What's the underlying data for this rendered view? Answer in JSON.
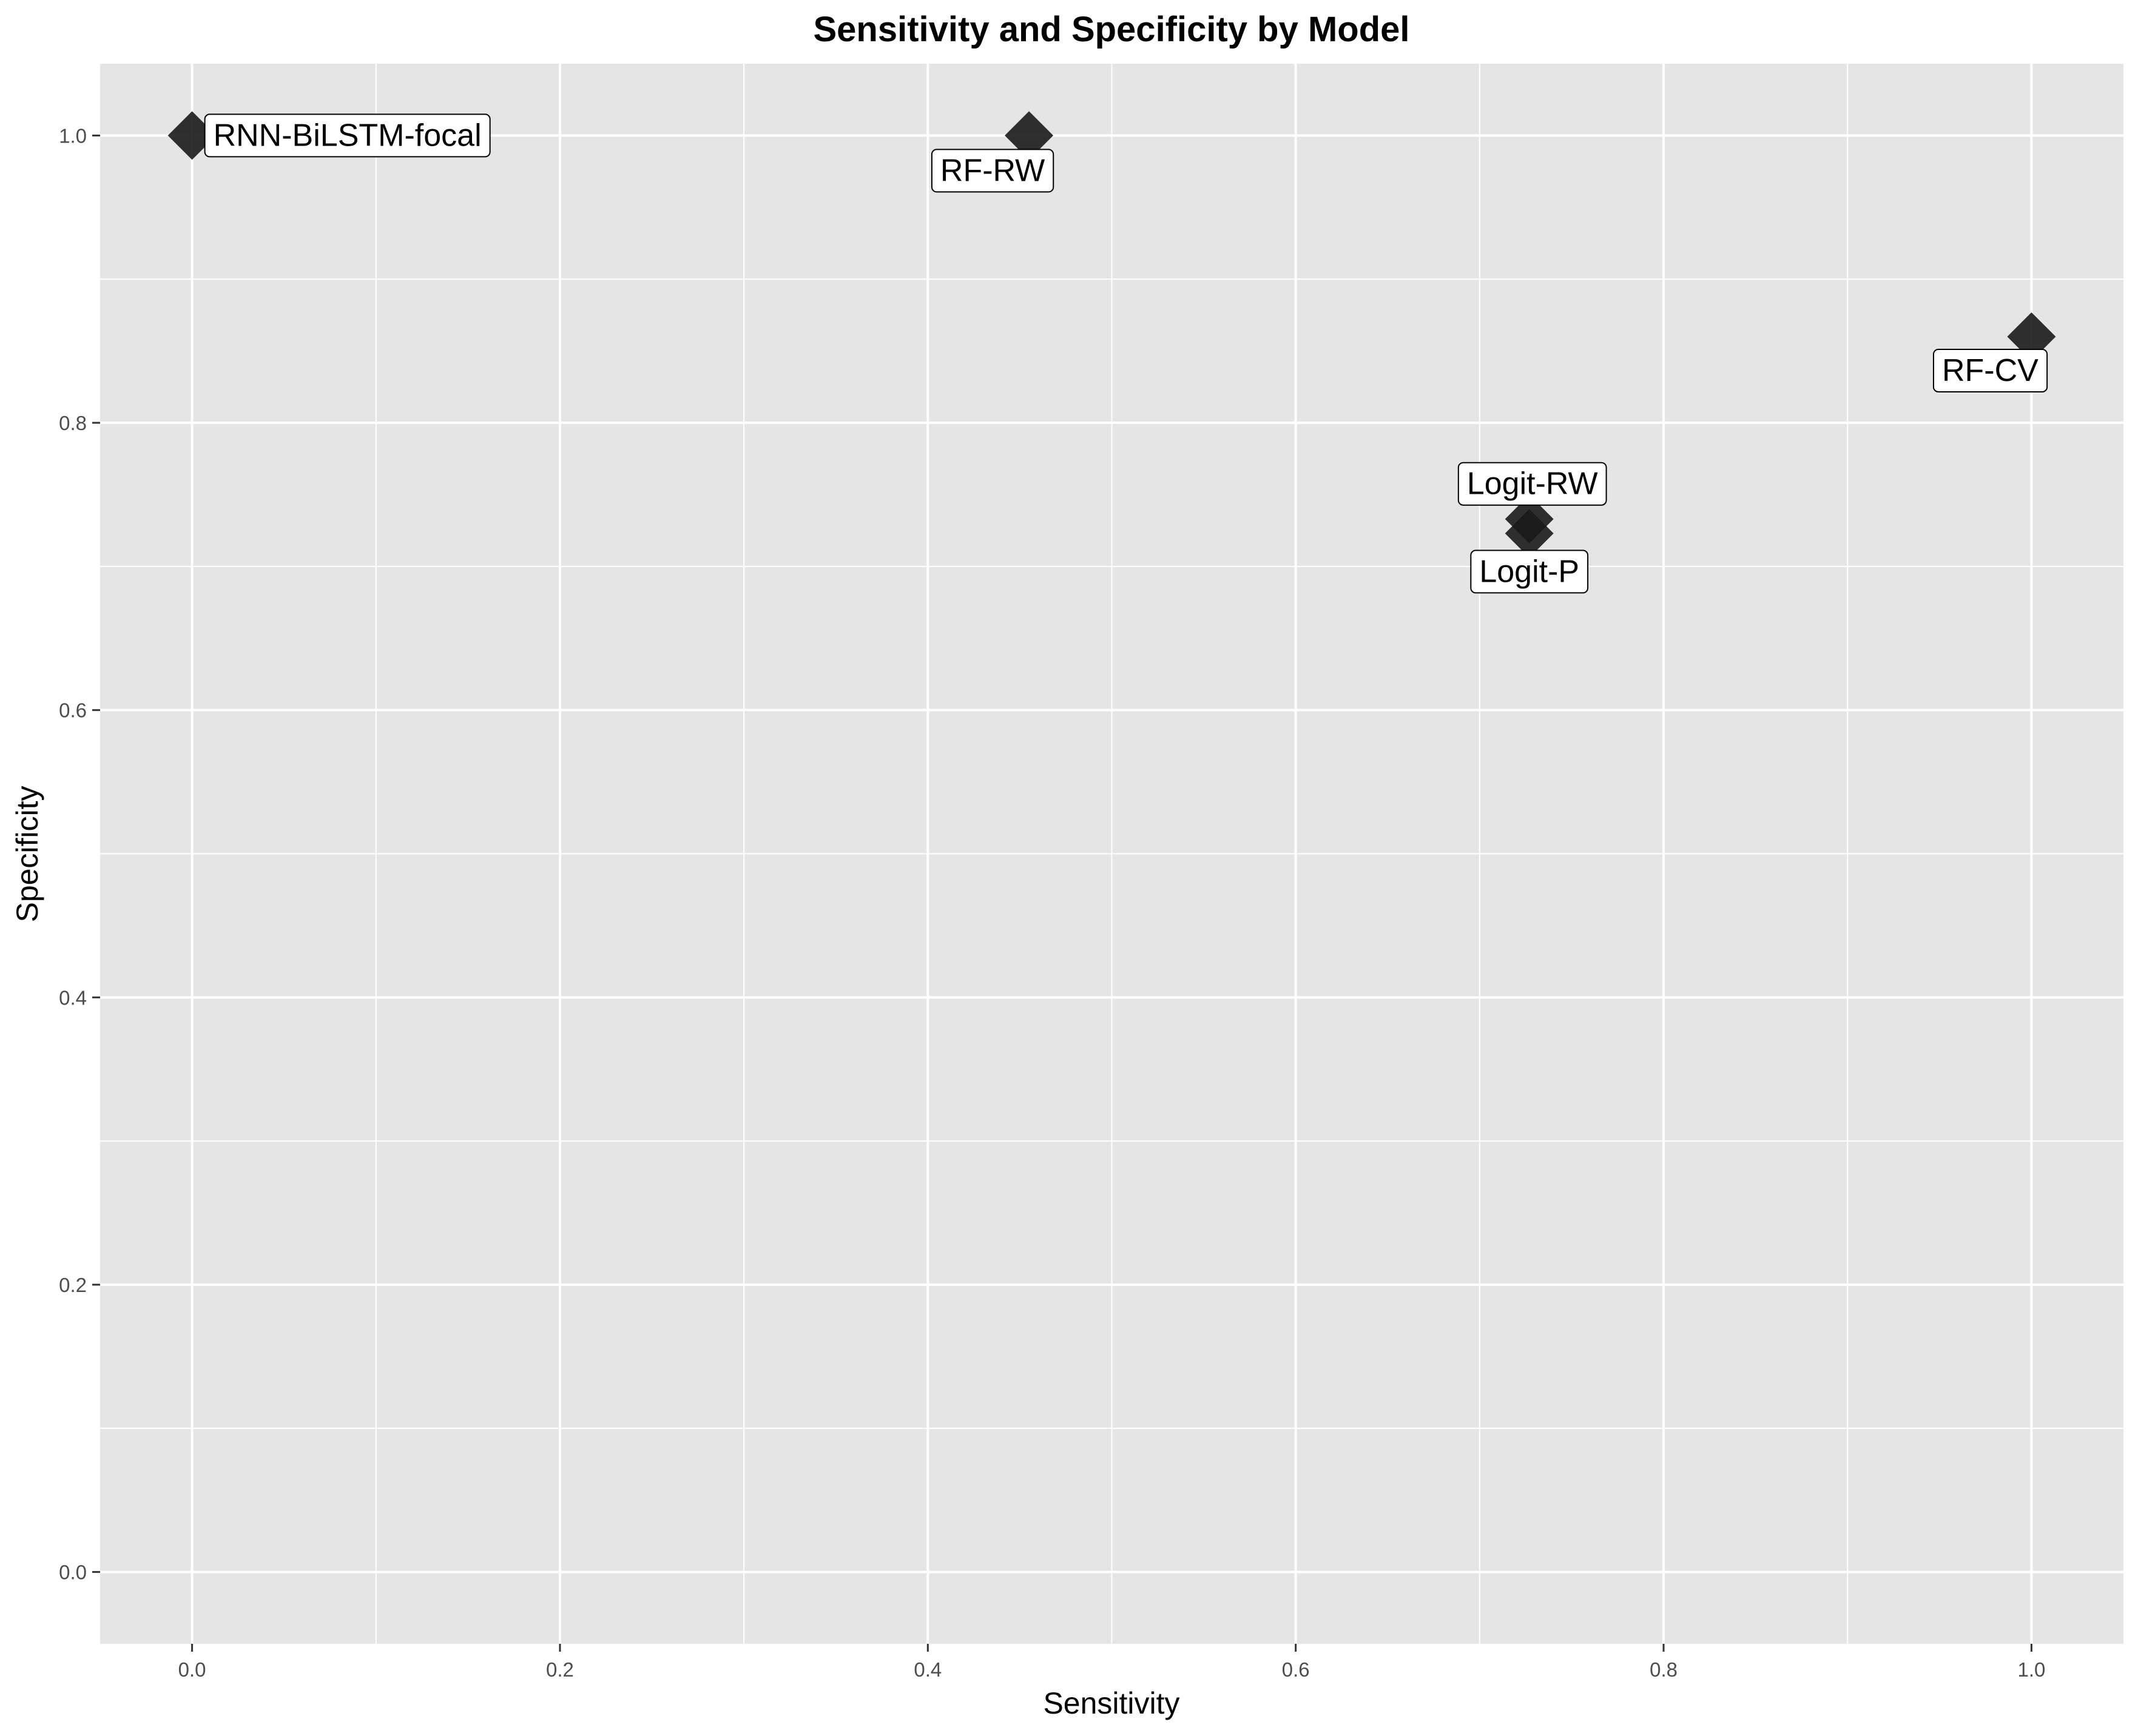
{
  "chart_data": {
    "type": "scatter",
    "title": "Sensitivity and Specificity by Model",
    "xlabel": "Sensitivity",
    "ylabel": "Specificity",
    "xlim": [
      -0.05,
      1.05
    ],
    "ylim": [
      -0.05,
      1.05
    ],
    "x_ticks": [
      0.0,
      0.2,
      0.4,
      0.6,
      0.8,
      1.0
    ],
    "y_ticks": [
      0.0,
      0.2,
      0.4,
      0.6,
      0.8,
      1.0
    ],
    "x_tick_labels": [
      "0.0",
      "0.2",
      "0.4",
      "0.6",
      "0.8",
      "1.0"
    ],
    "y_tick_labels": [
      "0.0",
      "0.2",
      "0.4",
      "0.6",
      "0.8",
      "1.0"
    ],
    "grid": true,
    "marker": "diamond",
    "points": [
      {
        "label": "RNN-BiLSTM-focal",
        "x": 0.0,
        "y": 1.0
      },
      {
        "label": "RF-RW",
        "x": 0.455,
        "y": 1.0
      },
      {
        "label": "RF-CV",
        "x": 1.0,
        "y": 0.86
      },
      {
        "label": "Logit-RW",
        "x": 0.727,
        "y": 0.733
      },
      {
        "label": "Logit-P",
        "x": 0.727,
        "y": 0.723
      }
    ],
    "colors": {
      "panel": "#e5e5e5",
      "grid": "#ffffff",
      "marker": "#1a1a1a",
      "label_bg": "#ffffff",
      "label_border": "#000000"
    }
  }
}
